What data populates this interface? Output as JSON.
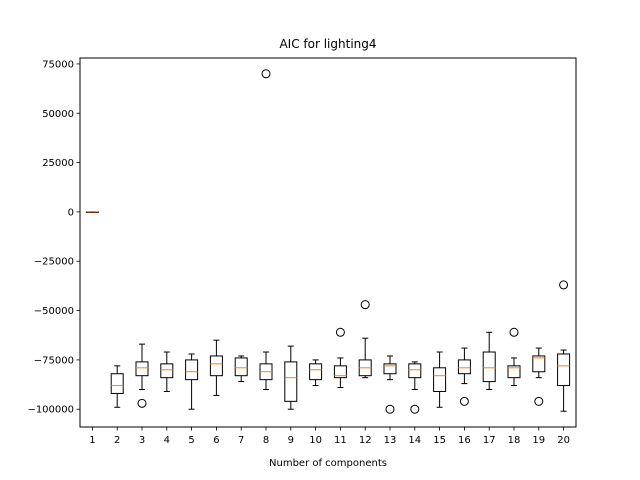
{
  "chart_data": {
    "type": "box",
    "title": "AIC for lighting4",
    "xlabel": "Number of components",
    "ylabel": "",
    "ylim": [
      -109000,
      78000
    ],
    "xlim": [
      0.5,
      20.5
    ],
    "grid": false,
    "yticks": [
      75000,
      50000,
      25000,
      0,
      -25000,
      -50000,
      -75000,
      -100000
    ],
    "ytick_labels": [
      "75000",
      "50000",
      "25000",
      "0",
      "−25000",
      "−50000",
      "−75000",
      "−100000"
    ],
    "categories": [
      "1",
      "2",
      "3",
      "4",
      "5",
      "6",
      "7",
      "8",
      "9",
      "10",
      "11",
      "12",
      "13",
      "14",
      "15",
      "16",
      "17",
      "18",
      "19",
      "20"
    ],
    "colors": {
      "box": "#000000",
      "median": "#ff7f0e",
      "outlier": "#000000"
    },
    "boxes": [
      {
        "x": 1,
        "whislo": 0,
        "q1": 0,
        "med": 0,
        "q3": 0,
        "whishi": 0,
        "fliers": []
      },
      {
        "x": 2,
        "whislo": -99000,
        "q1": -92000,
        "med": -88000,
        "q3": -82000,
        "whishi": -78000,
        "fliers": []
      },
      {
        "x": 3,
        "whislo": -90000,
        "q1": -83000,
        "med": -79000,
        "q3": -76000,
        "whishi": -67000,
        "fliers": [
          -97000
        ]
      },
      {
        "x": 4,
        "whislo": -91000,
        "q1": -84000,
        "med": -80000,
        "q3": -77000,
        "whishi": -71000,
        "fliers": []
      },
      {
        "x": 5,
        "whislo": -100000,
        "q1": -85000,
        "med": -81000,
        "q3": -75000,
        "whishi": -72000,
        "fliers": []
      },
      {
        "x": 6,
        "whislo": -93000,
        "q1": -83000,
        "med": -77000,
        "q3": -73000,
        "whishi": -65000,
        "fliers": []
      },
      {
        "x": 7,
        "whislo": -86000,
        "q1": -83000,
        "med": -79000,
        "q3": -74000,
        "whishi": -73000,
        "fliers": []
      },
      {
        "x": 8,
        "whislo": -90000,
        "q1": -85000,
        "med": -81000,
        "q3": -77000,
        "whishi": -71000,
        "fliers": [
          70000
        ]
      },
      {
        "x": 9,
        "whislo": -100000,
        "q1": -96000,
        "med": -84000,
        "q3": -76000,
        "whishi": -68000,
        "fliers": []
      },
      {
        "x": 10,
        "whislo": -88000,
        "q1": -85000,
        "med": -80000,
        "q3": -77000,
        "whishi": -75000,
        "fliers": []
      },
      {
        "x": 11,
        "whislo": -89000,
        "q1": -84000,
        "med": -83000,
        "q3": -78000,
        "whishi": -74000,
        "fliers": [
          -61000
        ]
      },
      {
        "x": 12,
        "whislo": -84000,
        "q1": -83000,
        "med": -79000,
        "q3": -75000,
        "whishi": -64000,
        "fliers": [
          -47000
        ]
      },
      {
        "x": 13,
        "whislo": -85000,
        "q1": -82000,
        "med": -78000,
        "q3": -77000,
        "whishi": -73000,
        "fliers": [
          -100000
        ]
      },
      {
        "x": 14,
        "whislo": -90000,
        "q1": -84000,
        "med": -80000,
        "q3": -77000,
        "whishi": -76000,
        "fliers": [
          -100000
        ]
      },
      {
        "x": 15,
        "whislo": -99000,
        "q1": -91000,
        "med": -83000,
        "q3": -79000,
        "whishi": -71000,
        "fliers": []
      },
      {
        "x": 16,
        "whislo": -87000,
        "q1": -82000,
        "med": -79000,
        "q3": -75000,
        "whishi": -69000,
        "fliers": [
          -96000
        ]
      },
      {
        "x": 17,
        "whislo": -90000,
        "q1": -86000,
        "med": -79000,
        "q3": -71000,
        "whishi": -61000,
        "fliers": []
      },
      {
        "x": 18,
        "whislo": -88000,
        "q1": -84000,
        "med": -79000,
        "q3": -78000,
        "whishi": -74000,
        "fliers": [
          -61000
        ]
      },
      {
        "x": 19,
        "whislo": -84000,
        "q1": -81000,
        "med": -74000,
        "q3": -73000,
        "whishi": -69000,
        "fliers": [
          -96000
        ]
      },
      {
        "x": 20,
        "whislo": -101000,
        "q1": -88000,
        "med": -78000,
        "q3": -72000,
        "whishi": -70000,
        "fliers": [
          -37000
        ]
      }
    ]
  }
}
